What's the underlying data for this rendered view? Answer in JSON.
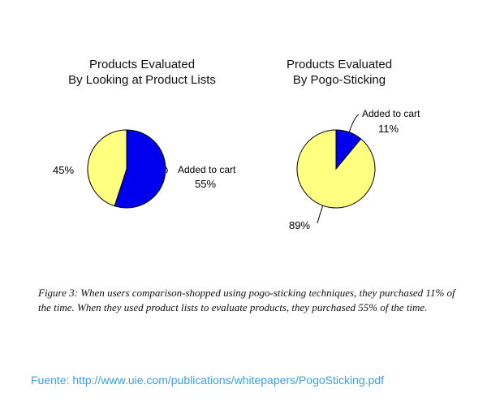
{
  "chart_data": [
    {
      "type": "pie",
      "title_lines": [
        "Products Evaluated",
        "By Looking at Product Lists"
      ],
      "slices": [
        {
          "label": "Added to cart",
          "value": 55,
          "value_label": "55%",
          "color": "#0000ee"
        },
        {
          "label": "",
          "value": 45,
          "value_label": "45%",
          "color": "#ffff80"
        }
      ]
    },
    {
      "type": "pie",
      "title_lines": [
        "Products Evaluated",
        "By Pogo-Sticking"
      ],
      "slices": [
        {
          "label": "Added to cart",
          "value": 11,
          "value_label": "11%",
          "color": "#0000ee"
        },
        {
          "label": "",
          "value": 89,
          "value_label": "89%",
          "color": "#ffff80"
        }
      ]
    }
  ],
  "caption": "Figure 3: When users comparison-shopped using pogo-sticking techniques, they purchased 11% of the time. When they used product lists to evaluate products, they purchased 55% of the time.",
  "source": "Fuente: http://www.uie.com/publications/whitepapers/PogoSticking.pdf",
  "colors": {
    "added": "#0000ee",
    "rest": "#ffff80",
    "source_link": "#3aa0e8"
  }
}
